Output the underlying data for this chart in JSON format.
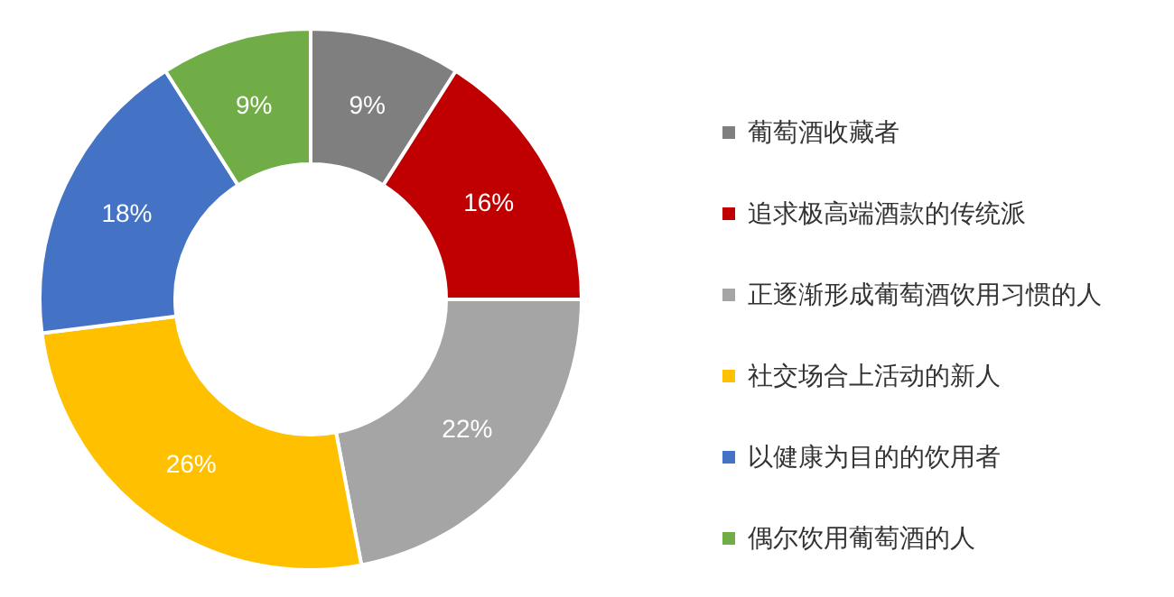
{
  "chart_data": {
    "type": "donut",
    "categories": [
      "葡萄酒收藏者",
      "追求极高端酒款的传统派",
      "正逐渐形成葡萄酒饮用习惯的人",
      "社交场合上活动的新人",
      "以健康为目的的饮用者",
      "偶尔饮用葡萄酒的人"
    ],
    "values": [
      9,
      16,
      22,
      26,
      18,
      9
    ],
    "colors": [
      "#7f7f7f",
      "#c00000",
      "#a5a5a5",
      "#ffc000",
      "#4472c4",
      "#70ad47"
    ],
    "value_labels": [
      "9%",
      "16%",
      "22%",
      "26%",
      "18%",
      "9%"
    ],
    "legend": "right"
  }
}
